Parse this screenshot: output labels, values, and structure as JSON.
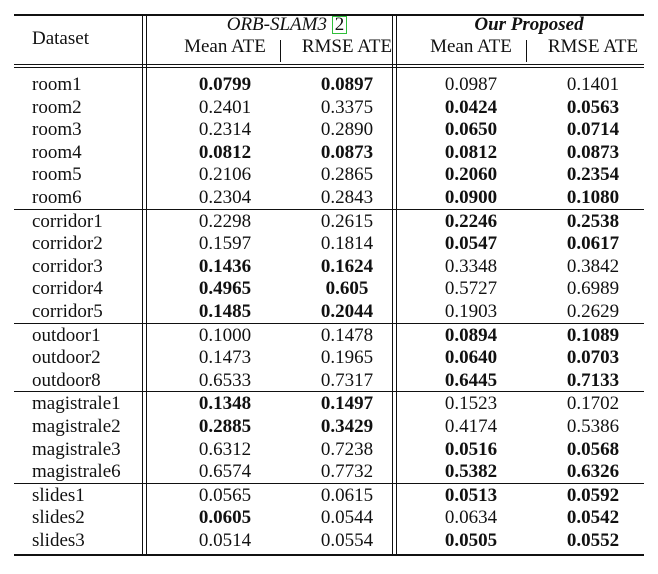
{
  "header": {
    "dataset": "Dataset",
    "group1_title": "ORB-SLAM3",
    "group1_cite": "2",
    "group2_title": "Our Proposed",
    "col_mean": "Mean ATE",
    "col_rmse": "RMSE ATE"
  },
  "groups": [
    {
      "rows": [
        {
          "name": "room1",
          "a": "0.0799",
          "b": "0.0897",
          "c": "0.0987",
          "d": "0.1401",
          "bold": [
            true,
            true,
            false,
            false
          ]
        },
        {
          "name": "room2",
          "a": "0.2401",
          "b": "0.3375",
          "c": "0.0424",
          "d": "0.0563",
          "bold": [
            false,
            false,
            true,
            true
          ]
        },
        {
          "name": "room3",
          "a": "0.2314",
          "b": "0.2890",
          "c": "0.0650",
          "d": "0.0714",
          "bold": [
            false,
            false,
            true,
            true
          ]
        },
        {
          "name": "room4",
          "a": "0.0812",
          "b": "0.0873",
          "c": "0.0812",
          "d": "0.0873",
          "bold": [
            true,
            true,
            true,
            true
          ]
        },
        {
          "name": "room5",
          "a": "0.2106",
          "b": "0.2865",
          "c": "0.2060",
          "d": "0.2354",
          "bold": [
            false,
            false,
            true,
            true
          ]
        },
        {
          "name": "room6",
          "a": "0.2304",
          "b": "0.2843",
          "c": "0.0900",
          "d": "0.1080",
          "bold": [
            false,
            false,
            true,
            true
          ]
        }
      ]
    },
    {
      "rows": [
        {
          "name": "corridor1",
          "a": "0.2298",
          "b": "0.2615",
          "c": "0.2246",
          "d": "0.2538",
          "bold": [
            false,
            false,
            true,
            true
          ]
        },
        {
          "name": "corridor2",
          "a": "0.1597",
          "b": "0.1814",
          "c": "0.0547",
          "d": "0.0617",
          "bold": [
            false,
            false,
            true,
            true
          ]
        },
        {
          "name": "corridor3",
          "a": "0.1436",
          "b": "0.1624",
          "c": "0.3348",
          "d": "0.3842",
          "bold": [
            true,
            true,
            false,
            false
          ]
        },
        {
          "name": "corridor4",
          "a": "0.4965",
          "b": "0.605",
          "c": "0.5727",
          "d": "0.6989",
          "bold": [
            true,
            true,
            false,
            false
          ]
        },
        {
          "name": "corridor5",
          "a": "0.1485",
          "b": "0.2044",
          "c": "0.1903",
          "d": "0.2629",
          "bold": [
            true,
            true,
            false,
            false
          ]
        }
      ]
    },
    {
      "rows": [
        {
          "name": "outdoor1",
          "a": "0.1000",
          "b": "0.1478",
          "c": "0.0894",
          "d": "0.1089",
          "bold": [
            false,
            false,
            true,
            true
          ]
        },
        {
          "name": "outdoor2",
          "a": "0.1473",
          "b": "0.1965",
          "c": "0.0640",
          "d": "0.0703",
          "bold": [
            false,
            false,
            true,
            true
          ]
        },
        {
          "name": "outdoor8",
          "a": "0.6533",
          "b": "0.7317",
          "c": "0.6445",
          "d": "0.7133",
          "bold": [
            false,
            false,
            true,
            true
          ]
        }
      ]
    },
    {
      "rows": [
        {
          "name": "magistrale1",
          "a": "0.1348",
          "b": "0.1497",
          "c": "0.1523",
          "d": "0.1702",
          "bold": [
            true,
            true,
            false,
            false
          ]
        },
        {
          "name": "magistrale2",
          "a": "0.2885",
          "b": "0.3429",
          "c": "0.4174",
          "d": "0.5386",
          "bold": [
            true,
            true,
            false,
            false
          ]
        },
        {
          "name": "magistrale3",
          "a": "0.6312",
          "b": "0.7238",
          "c": "0.0516",
          "d": "0.0568",
          "bold": [
            false,
            false,
            true,
            true
          ]
        },
        {
          "name": "magistrale6",
          "a": "0.6574",
          "b": "0.7732",
          "c": "0.5382",
          "d": "0.6326",
          "bold": [
            false,
            false,
            true,
            true
          ]
        }
      ]
    },
    {
      "rows": [
        {
          "name": "slides1",
          "a": "0.0565",
          "b": "0.0615",
          "c": "0.0513",
          "d": "0.0592",
          "bold": [
            false,
            false,
            true,
            true
          ]
        },
        {
          "name": "slides2",
          "a": "0.0605",
          "b": "0.0544",
          "c": "0.0634",
          "d": "0.0542",
          "bold": [
            true,
            false,
            false,
            true
          ]
        },
        {
          "name": "slides3",
          "a": "0.0514",
          "b": "0.0554",
          "c": "0.0505",
          "d": "0.0552",
          "bold": [
            false,
            false,
            true,
            true
          ]
        }
      ]
    }
  ]
}
